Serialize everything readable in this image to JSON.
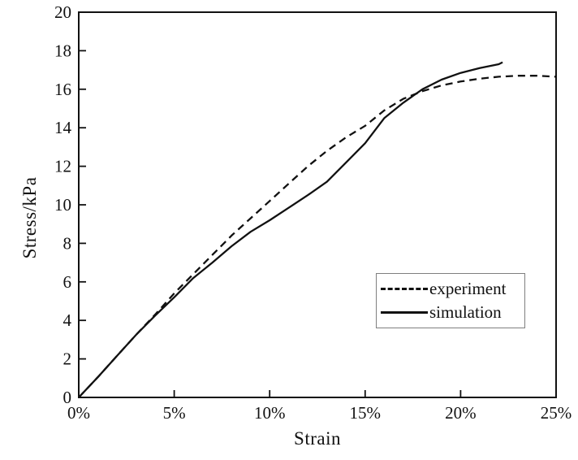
{
  "figure": {
    "background": "#ffffff",
    "ink_color": "#111111"
  },
  "chart_data": {
    "type": "line",
    "title": "",
    "xlabel": "Strain",
    "ylabel": "Stress/kPa",
    "xlim": [
      0,
      25
    ],
    "ylim": [
      0,
      20
    ],
    "grid": false,
    "legend_position": "inside lower right",
    "x_ticks": [
      0,
      5,
      10,
      15,
      20,
      25
    ],
    "x_tick_labels": [
      "0%",
      "5%",
      "10%",
      "15%",
      "20%",
      "25%"
    ],
    "y_ticks": [
      0,
      2,
      4,
      6,
      8,
      10,
      12,
      14,
      16,
      18,
      20
    ],
    "y_tick_labels": [
      "0",
      "2",
      "4",
      "6",
      "8",
      "10",
      "12",
      "14",
      "16",
      "18",
      "20"
    ],
    "series": [
      {
        "name": "experiment",
        "style": "dashed",
        "color": "#111111",
        "x": [
          0,
          1,
          2,
          3,
          4,
          5,
          6,
          7,
          8,
          9,
          10,
          11,
          12,
          13,
          14,
          15,
          16,
          17,
          18,
          19,
          20,
          21,
          22,
          23,
          24,
          25
        ],
        "y": [
          0,
          1.05,
          2.15,
          3.25,
          4.3,
          5.4,
          6.4,
          7.4,
          8.4,
          9.3,
          10.2,
          11.1,
          12.0,
          12.8,
          13.5,
          14.1,
          14.9,
          15.5,
          15.9,
          16.2,
          16.4,
          16.55,
          16.65,
          16.7,
          16.7,
          16.65
        ]
      },
      {
        "name": "simulation",
        "style": "solid",
        "color": "#111111",
        "x": [
          0,
          1,
          2,
          3,
          4,
          5,
          6,
          7,
          8,
          9,
          10,
          11,
          12,
          13,
          14,
          15,
          16,
          17,
          18,
          19,
          20,
          21,
          22,
          22.2
        ],
        "y": [
          0,
          1.05,
          2.15,
          3.25,
          4.25,
          5.2,
          6.2,
          7.0,
          7.85,
          8.6,
          9.2,
          9.85,
          10.5,
          11.2,
          12.2,
          13.2,
          14.5,
          15.3,
          16.0,
          16.5,
          16.85,
          17.1,
          17.3,
          17.4
        ]
      }
    ]
  }
}
